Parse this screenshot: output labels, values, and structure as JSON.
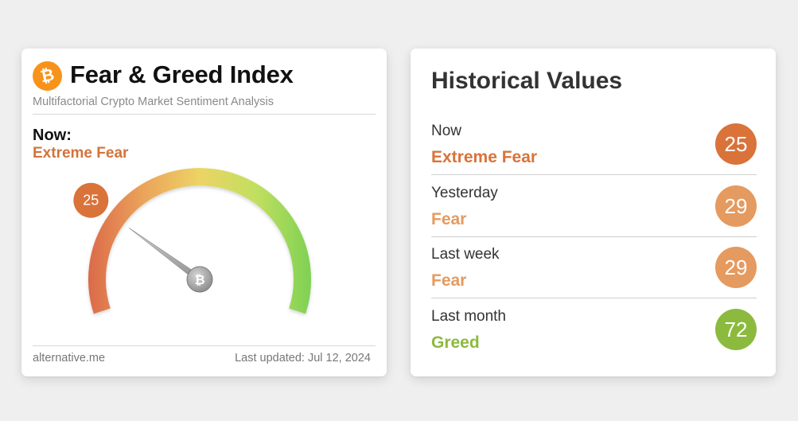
{
  "index_card": {
    "logo_icon": "bitcoin-icon",
    "title": "Fear & Greed Index",
    "subtitle": "Multifactorial Crypto Market Sentiment Analysis",
    "now_label": "Now:",
    "now_classification": "Extreme Fear",
    "gauge": {
      "value": 25,
      "value_label": "25",
      "min": 0,
      "max": 100,
      "needle_icon": "bitcoin-icon",
      "badge_color": "#d9733a"
    },
    "source": "alternative.me",
    "last_updated": "Last updated: Jul 12, 2024"
  },
  "history_card": {
    "title": "Historical Values",
    "rows": [
      {
        "label": "Now",
        "classification": "Extreme Fear",
        "value": "25",
        "color": "#d9733a"
      },
      {
        "label": "Yesterday",
        "classification": "Fear",
        "value": "29",
        "color": "#e59a60"
      },
      {
        "label": "Last week",
        "classification": "Fear",
        "value": "29",
        "color": "#e59a60"
      },
      {
        "label": "Last month",
        "classification": "Greed",
        "value": "72",
        "color": "#8cba3e"
      }
    ]
  }
}
